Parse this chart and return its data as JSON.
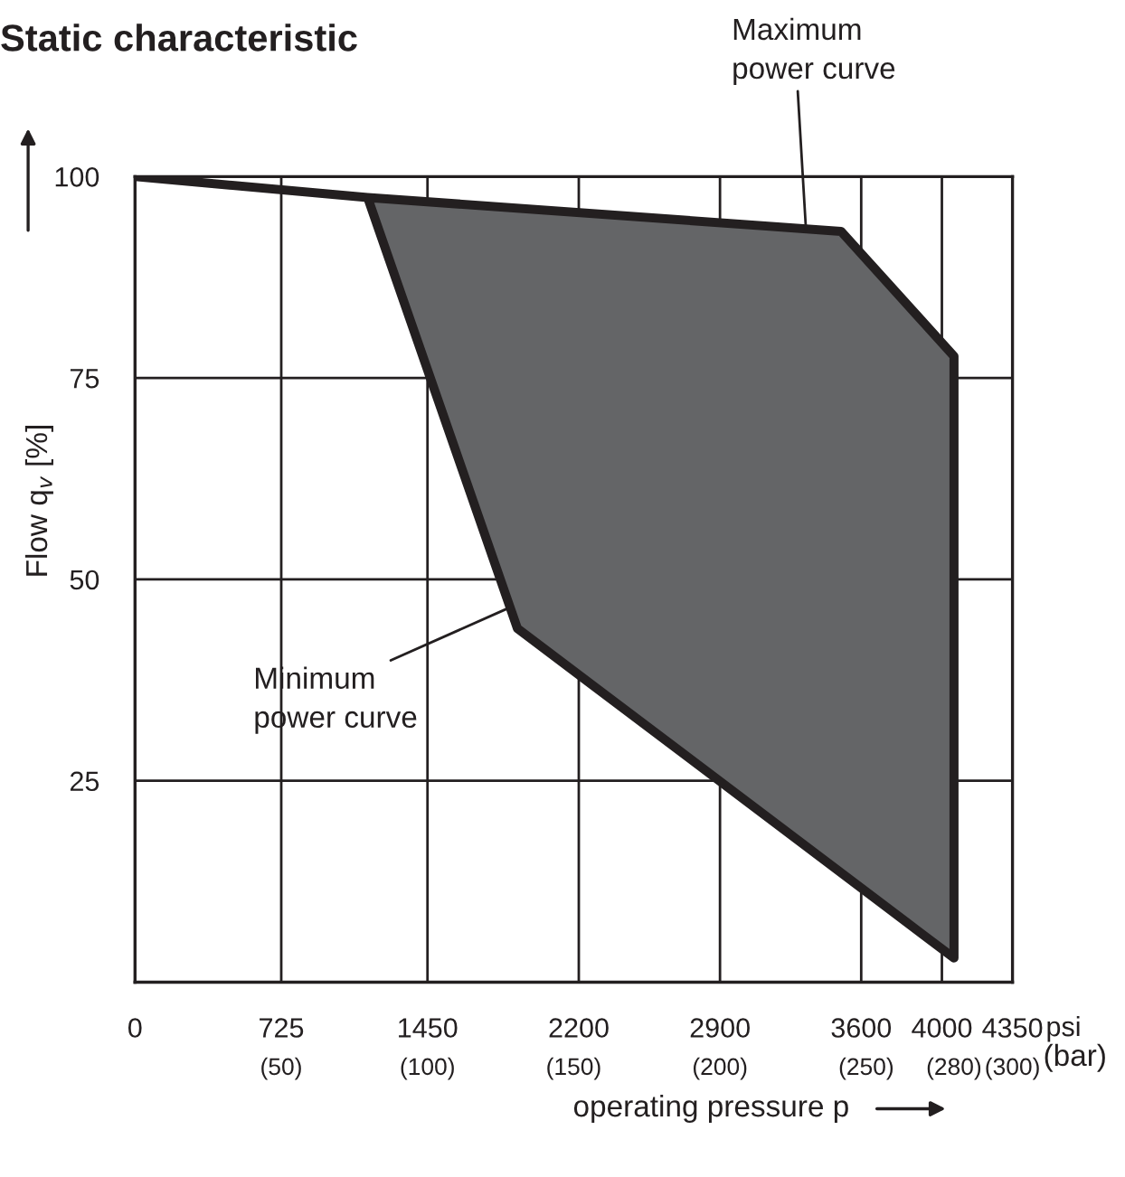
{
  "chart_data": {
    "type": "area",
    "title": "Static characteristic",
    "xlabel": "operating pressure p",
    "ylabel": "Flow q$_{v}$ [%]",
    "x2label": "(bar)",
    "xlim": [
      0,
      4350
    ],
    "ylim": [
      0,
      100
    ],
    "x2lim": [
      0,
      300
    ],
    "xticks": [
      0,
      725,
      1450,
      2200,
      2900,
      3600,
      4000,
      4350
    ],
    "x2ticks": [
      {
        "value": 50,
        "label": "(50)"
      },
      {
        "value": 100,
        "label": "(100)"
      },
      {
        "value": 150,
        "label": "(150)"
      },
      {
        "value": 200,
        "label": "(200)"
      },
      {
        "value": 250,
        "label": "(250)"
      },
      {
        "value": 280,
        "label": "(280)"
      },
      {
        "value": 300,
        "label": "(300)"
      }
    ],
    "yticks": [
      {
        "value": 0,
        "label": null
      },
      25,
      50,
      75,
      100
    ],
    "grid": true,
    "series": [
      {
        "color": "#646567",
        "x": [
          0,
          1153,
          3500,
          4060,
          4060,
          1896,
          1153
        ],
        "values": [
          100,
          97.4,
          93.2,
          77.7,
          3,
          43.9,
          97.4
        ]
      }
    ],
    "annotations": [
      {
        "text": "Maximum\npower curve",
        "x": 3326,
        "y": 93.5
      },
      {
        "text": "Minimum\npower curve",
        "x": 1839,
        "y": 46.3
      },
      "psi"
    ]
  }
}
